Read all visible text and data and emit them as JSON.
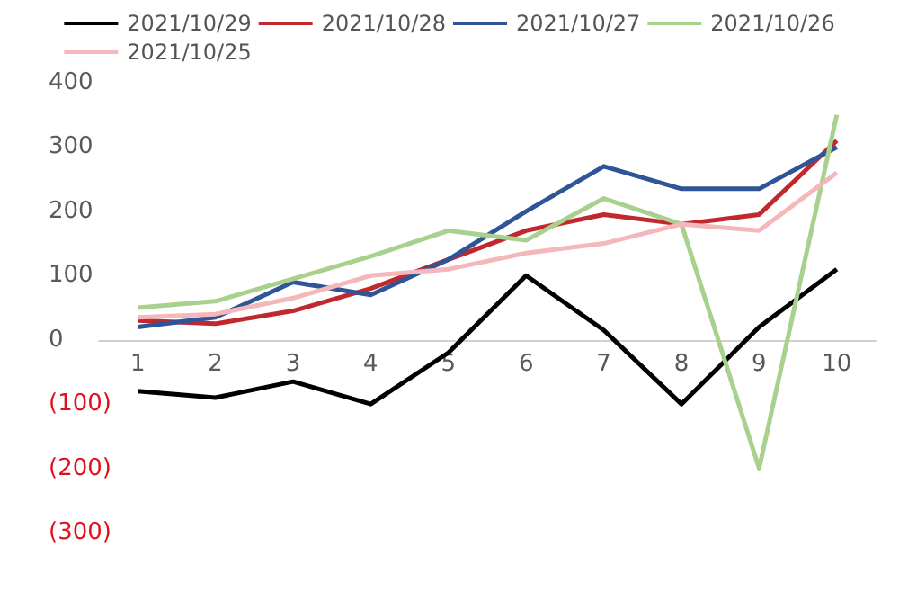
{
  "chart_data": {
    "type": "line",
    "categories": [
      "1",
      "2",
      "3",
      "4",
      "5",
      "6",
      "7",
      "8",
      "9",
      "10"
    ],
    "series": [
      {
        "name": "2021/10/29",
        "color": "#000000",
        "values": [
          -80,
          -90,
          -65,
          -100,
          -20,
          100,
          15,
          -100,
          20,
          110
        ]
      },
      {
        "name": "2021/10/28",
        "color": "#c0282e",
        "values": [
          30,
          25,
          45,
          80,
          125,
          170,
          195,
          180,
          195,
          310
        ]
      },
      {
        "name": "2021/10/27",
        "color": "#2f5597",
        "values": [
          20,
          35,
          90,
          70,
          125,
          200,
          270,
          235,
          235,
          300
        ]
      },
      {
        "name": "2021/10/26",
        "color": "#a9d18e",
        "values": [
          50,
          60,
          95,
          130,
          170,
          155,
          220,
          180,
          -200,
          350
        ]
      },
      {
        "name": "2021/10/25",
        "color": "#f4b8bb",
        "values": [
          35,
          40,
          65,
          100,
          110,
          135,
          150,
          180,
          170,
          260
        ]
      }
    ],
    "ylim": [
      -300,
      400
    ],
    "yticks": [
      {
        "value": -300,
        "label": "(300)"
      },
      {
        "value": -200,
        "label": "(200)"
      },
      {
        "value": -100,
        "label": "(100)"
      },
      0,
      100,
      200,
      300,
      400
    ],
    "grid": false,
    "legend": "top",
    "marker": "none",
    "line_style": "solid"
  }
}
